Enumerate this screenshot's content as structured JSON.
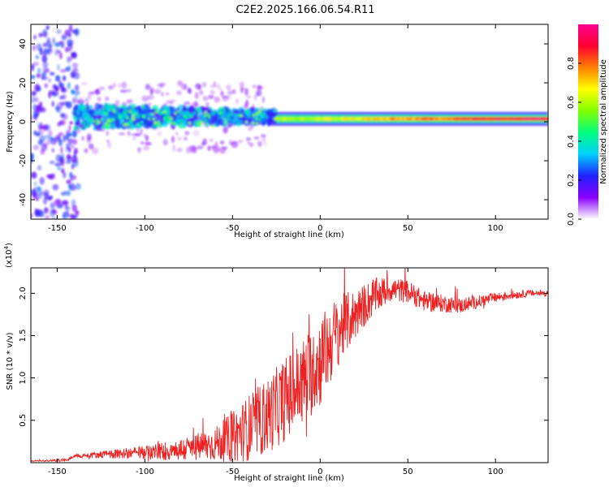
{
  "figure_title": "C2E2.2025.166.06.54.R11",
  "chart_data": [
    {
      "type": "heatmap",
      "title": "C2E2.2025.166.06.54.R11",
      "xlabel": "Height of straight line (km)",
      "ylabel": "Frequency (Hz)",
      "xlim": [
        -165,
        130
      ],
      "ylim": [
        -50,
        50
      ],
      "xticks": [
        -150,
        -100,
        -50,
        0,
        50,
        100
      ],
      "yticks": [
        -40,
        -20,
        0,
        20,
        40
      ],
      "xtick_labels": [
        "-150",
        "-100",
        "-50",
        "0",
        "50",
        "100"
      ],
      "ytick_labels": [
        "-40",
        "-20",
        "0",
        "20",
        "40"
      ],
      "colorbar": {
        "label": "Normalized spectral amplitude",
        "range": [
          0.0,
          1.0
        ],
        "ticks": [
          0.0,
          0.2,
          0.4,
          0.6,
          0.8
        ],
        "tick_labels": [
          "0.0",
          "0.2",
          "0.4",
          "0.6",
          "0.8"
        ],
        "colormap": [
          "#ffffff",
          "#8a00ff",
          "#2020ff",
          "#00d0ff",
          "#00ff80",
          "#80ff00",
          "#ffff00",
          "#ff8000",
          "#ff0030",
          "#ff0090"
        ]
      },
      "features": [
        {
          "name": "diffuse wide spread",
          "x_range": [
            -165,
            -140
          ],
          "freq_range": [
            -50,
            50
          ],
          "amplitude": 0.15
        },
        {
          "name": "scattered band",
          "x_range": [
            -140,
            -30
          ],
          "freq_range": [
            -8,
            15
          ],
          "amplitude": 0.35
        },
        {
          "name": "narrow line",
          "x_range": [
            -30,
            130
          ],
          "freq_center": 1.5,
          "freq_width": 3,
          "amplitude": 0.9
        }
      ]
    },
    {
      "type": "line",
      "xlabel": "Height of straight line (km)",
      "ylabel": "SNR (10 * v/v)",
      "y_scale_label": "(x10",
      "y_scale_exponent": "4",
      "xlim": [
        -165,
        130
      ],
      "ylim": [
        0,
        2.3
      ],
      "xticks": [
        -150,
        -100,
        -50,
        0,
        50,
        100
      ],
      "yticks": [
        0.5,
        1.0,
        1.5,
        2.0
      ],
      "xtick_labels": [
        "-150",
        "-100",
        "-50",
        "0",
        "50",
        "100"
      ],
      "ytick_labels": [
        "0.5",
        "1.0",
        "1.5",
        "2.0"
      ],
      "color": "#ee2222",
      "trend": {
        "x": [
          -165,
          -145,
          -140,
          -120,
          -100,
          -80,
          -60,
          -50,
          -40,
          -30,
          -20,
          -10,
          0,
          10,
          20,
          30,
          40,
          50,
          60,
          70,
          80,
          90,
          100,
          110,
          120,
          130
        ],
        "y": [
          0.02,
          0.03,
          0.08,
          0.1,
          0.12,
          0.15,
          0.22,
          0.3,
          0.42,
          0.55,
          0.75,
          0.95,
          1.2,
          1.55,
          1.75,
          1.95,
          2.05,
          2.02,
          1.9,
          1.88,
          1.85,
          1.9,
          1.95,
          1.98,
          2.0,
          2.0
        ]
      },
      "noise_amplitude": {
        "x": [
          -165,
          -140,
          -100,
          -60,
          -40,
          -20,
          0,
          20,
          40,
          60,
          100,
          130
        ],
        "y": [
          0.005,
          0.02,
          0.08,
          0.2,
          0.4,
          0.5,
          0.55,
          0.3,
          0.15,
          0.12,
          0.06,
          0.03
        ]
      }
    }
  ]
}
